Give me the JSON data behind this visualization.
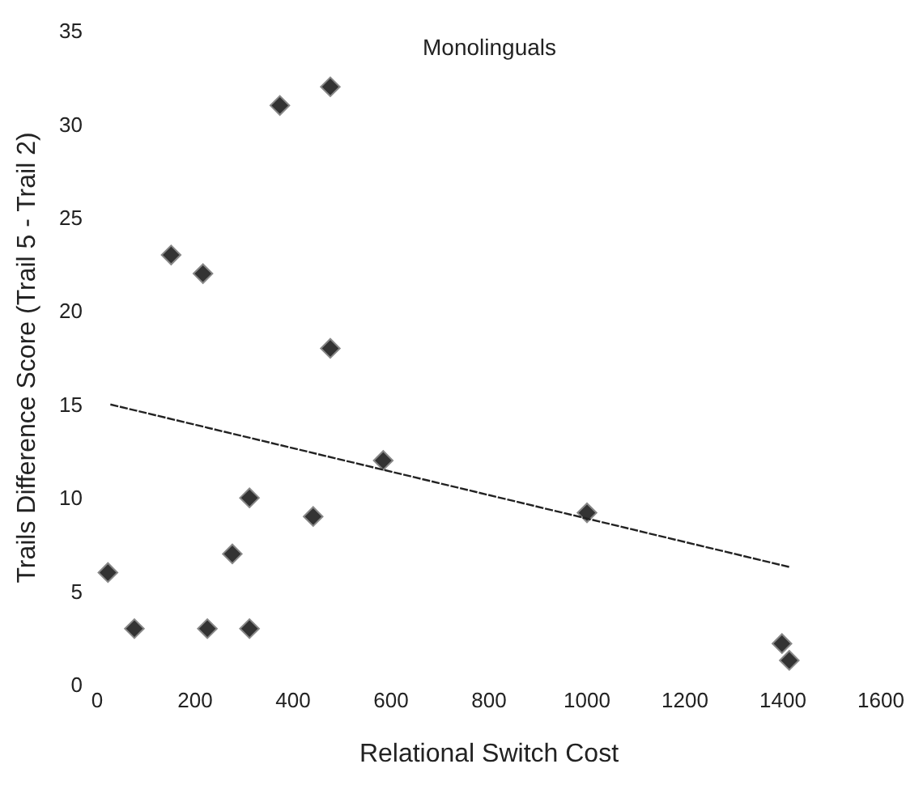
{
  "chart_data": {
    "type": "scatter",
    "title": "Monolinguals",
    "xlabel": "Relational Switch Cost",
    "ylabel": "Trails Difference Score (Trail 5 - Trail 2)",
    "xlim": [
      0,
      1600
    ],
    "xticks": [
      0,
      200,
      400,
      600,
      800,
      1000,
      1200,
      1400,
      1600
    ],
    "ylim": [
      0,
      35
    ],
    "yticks": [
      0,
      5,
      10,
      15,
      20,
      25,
      30,
      35
    ],
    "marker": "diamond",
    "series": [
      {
        "color": "#333333",
        "x": [
          22,
          76,
          151,
          216,
          225,
          276,
          311,
          311,
          373,
          441,
          476,
          476,
          584,
          1000,
          1398,
          1413
        ],
        "values": [
          6,
          3,
          23,
          22,
          3,
          7,
          10,
          3,
          31,
          9,
          32,
          18,
          12,
          9.2,
          2.2,
          1.3
        ]
      },
      {
        "type": "line",
        "color": "#222222",
        "line_style": "dashed",
        "marker": "none",
        "x": [
          27,
          1413
        ],
        "values": [
          15.0,
          6.3
        ]
      }
    ]
  }
}
